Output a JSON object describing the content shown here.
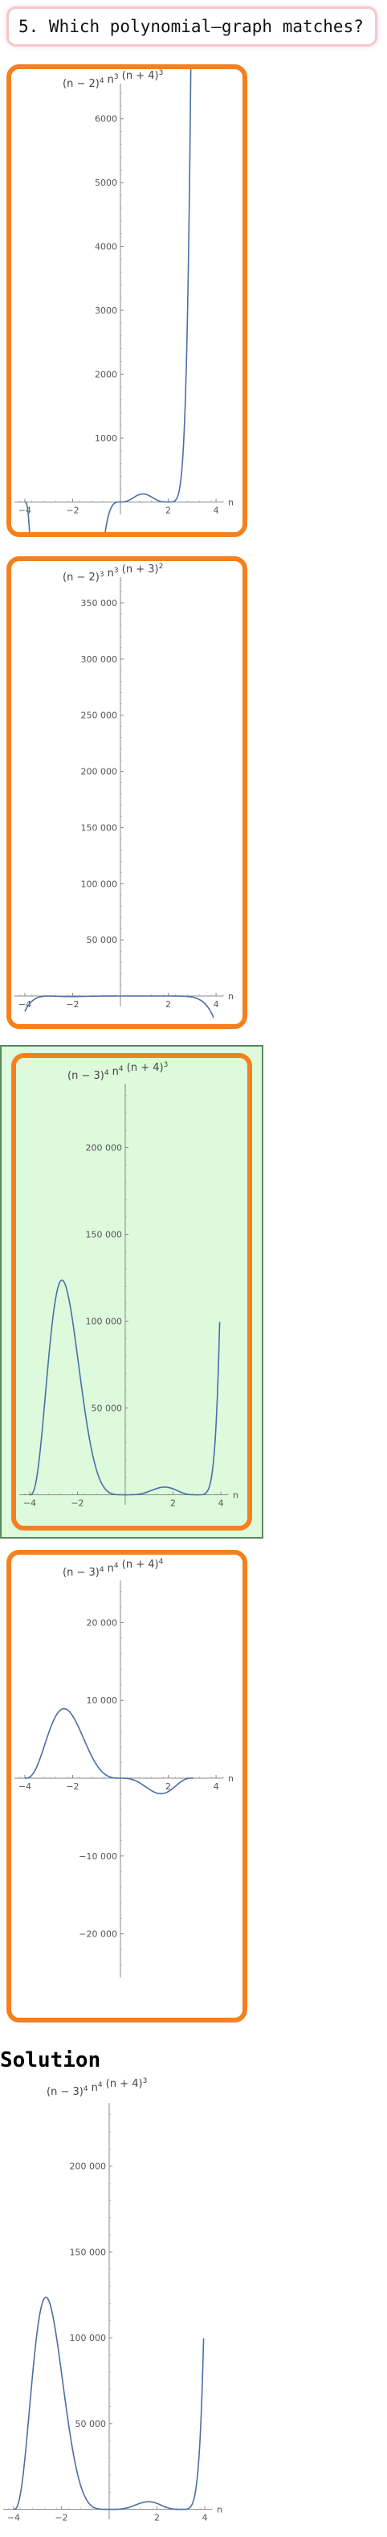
{
  "question": {
    "text": "5. Which polynomial–graph matches?"
  },
  "colors": {
    "option_border": "#f5801d",
    "correct_bg": "#ddfadd",
    "curve": "#4a6fa5",
    "question_border": "#f6c6cc"
  },
  "options": [
    {
      "correct": false,
      "chart_data": {
        "type": "line",
        "title_parts": [
          [
            "(n − 2)",
            "4"
          ],
          [
            " n",
            "3"
          ],
          [
            " (n + 4)",
            "3"
          ]
        ],
        "xlabel": "n",
        "xlim": [
          -4.3,
          4.3
        ],
        "ylim": [
          -120,
          6500
        ],
        "x_ticks": [
          -4,
          -2,
          2,
          4
        ],
        "x_tick_labels": [
          "−4",
          "−2",
          "2",
          "4"
        ],
        "y_ticks": [
          1000,
          2000,
          3000,
          4000,
          5000,
          6000
        ],
        "y_tick_labels": [
          "1000",
          "2000",
          "3000",
          "4000",
          "5000",
          "6000"
        ],
        "series": [
          {
            "formula": {
              "a": 2,
              "p": 4,
              "q": 3,
              "b": 4,
              "r": 3
            },
            "x_range": [
              -4.0,
              3.85
            ]
          }
        ]
      }
    },
    {
      "correct": false,
      "chart_data": {
        "type": "line",
        "title_parts": [
          [
            "(n − 2)",
            "3"
          ],
          [
            " n",
            "3"
          ],
          [
            " (n + 3)",
            "2"
          ]
        ],
        "xlabel": "n",
        "xlim": [
          -4.3,
          4.3
        ],
        "ylim": [
          -5000,
          370000
        ],
        "x_ticks": [
          -4,
          -2,
          2,
          4
        ],
        "x_tick_labels": [
          "−4",
          "−2",
          "2",
          "4"
        ],
        "y_ticks": [
          50000,
          100000,
          150000,
          200000,
          250000,
          300000,
          350000
        ],
        "y_tick_labels": [
          "50 000",
          "100 000",
          "150 000",
          "200 000",
          "250 000",
          "300 000",
          "350 000"
        ],
        "series": [
          {
            "formula": {
              "a": 2,
              "p": 3,
              "q": 3,
              "b": 3,
              "r": 2,
              "sign": -1
            },
            "x_range": [
              -4.0,
              3.9
            ]
          }
        ]
      }
    },
    {
      "correct": true,
      "chart_data": {
        "type": "line",
        "title_parts": [
          [
            "(n − 3)",
            "4"
          ],
          [
            " n",
            "4"
          ],
          [
            " (n + 4)",
            "3"
          ]
        ],
        "xlabel": "n",
        "xlim": [
          -4.3,
          4.3
        ],
        "ylim": [
          -3000,
          235000
        ],
        "x_ticks": [
          -4,
          -2,
          2,
          4
        ],
        "x_tick_labels": [
          "−4",
          "−2",
          "2",
          "4"
        ],
        "y_ticks": [
          50000,
          100000,
          150000,
          200000
        ],
        "y_tick_labels": [
          "50 000",
          "100 000",
          "150 000",
          "200 000"
        ],
        "series": [
          {
            "formula": {
              "a": 3,
              "p": 4,
              "q": 4,
              "b": 4,
              "r": 3
            },
            "x_range": [
              -4.0,
              3.95
            ]
          }
        ]
      }
    },
    {
      "correct": false,
      "chart_data": {
        "type": "line",
        "title_parts": [
          [
            "(n − 3)",
            "4"
          ],
          [
            " n",
            "4"
          ],
          [
            " (n + 4)",
            "4"
          ]
        ],
        "xlabel": "n",
        "xlim": [
          -4.3,
          4.3
        ],
        "ylim": [
          -25000,
          25000
        ],
        "x_ticks": [
          -4,
          -2,
          2,
          4
        ],
        "x_tick_labels": [
          "−4",
          "−2",
          "2",
          "4"
        ],
        "y_ticks": [
          -20000,
          -10000,
          10000,
          20000
        ],
        "y_tick_labels": [
          "−20 000",
          "−10 000",
          "10 000",
          "20 000"
        ],
        "series": [
          {
            "formula": {
              "a": 3,
              "p": 3,
              "q": 3,
              "b": 4,
              "r": 3
            },
            "x_range": [
              -4.0,
              3.05
            ]
          }
        ]
      }
    }
  ],
  "solution": {
    "heading": "Solution",
    "chart_data": {
      "type": "line",
      "title_parts": [
        [
          "(n − 3)",
          "4"
        ],
        [
          " n",
          "4"
        ],
        [
          " (n + 4)",
          "3"
        ]
      ],
      "xlabel": "n",
      "xlim": [
        -4.3,
        4.3
      ],
      "ylim": [
        -3000,
        235000
      ],
      "x_ticks": [
        -4,
        -2,
        2,
        4
      ],
      "x_tick_labels": [
        "−4",
        "−2",
        "2",
        "4"
      ],
      "y_ticks": [
        50000,
        100000,
        150000,
        200000
      ],
      "y_tick_labels": [
        "50 000",
        "100 000",
        "150 000",
        "200 000"
      ],
      "series": [
        {
          "formula": {
            "a": 3,
            "p": 4,
            "q": 4,
            "b": 4,
            "r": 3
          },
          "x_range": [
            -4.0,
            3.95
          ]
        }
      ]
    }
  }
}
